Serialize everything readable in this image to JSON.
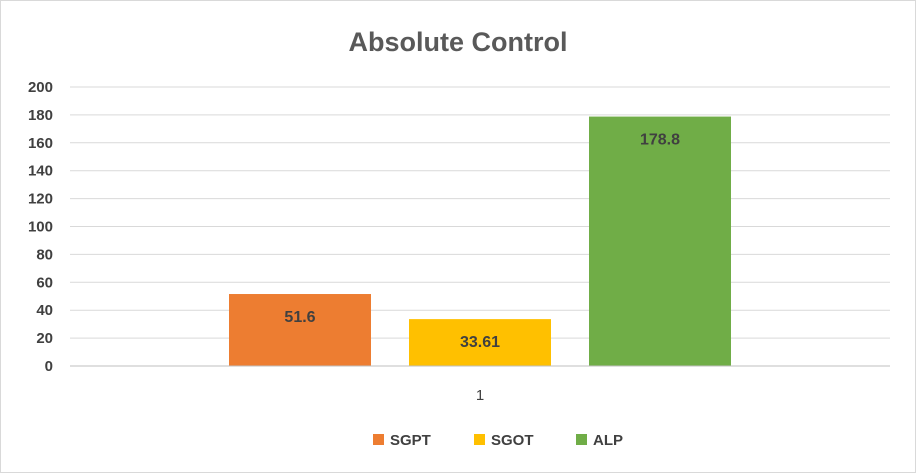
{
  "chart_data": {
    "type": "bar",
    "title": "Absolute Control",
    "categories": [
      "1"
    ],
    "series": [
      {
        "name": "SGPT",
        "values": [
          51.6
        ],
        "color": "#ED7D31",
        "label": "51.6"
      },
      {
        "name": "SGOT",
        "values": [
          33.61
        ],
        "color": "#FFC000",
        "label": "33.61"
      },
      {
        "name": "ALP",
        "values": [
          178.8
        ],
        "color": "#70AD47",
        "label": "178.8"
      }
    ],
    "ylim": [
      0,
      200
    ],
    "yticks": [
      "0",
      "20",
      "40",
      "60",
      "80",
      "100",
      "120",
      "140",
      "160",
      "180",
      "200"
    ],
    "grid": true,
    "legend_position": "bottom"
  }
}
